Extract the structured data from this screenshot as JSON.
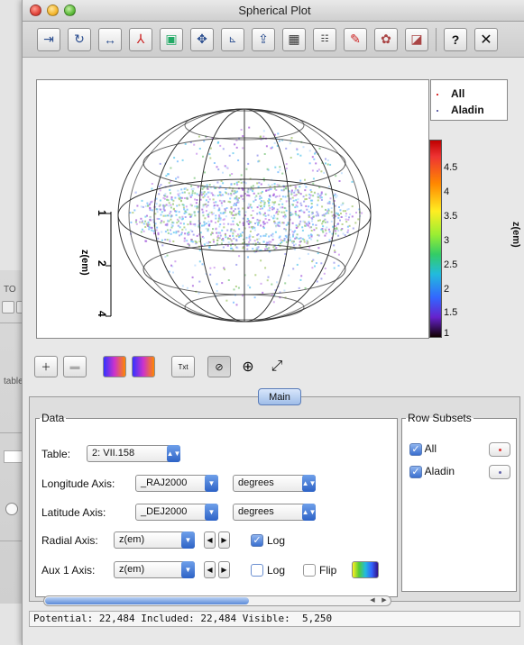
{
  "window": {
    "title": "Spherical Plot"
  },
  "toolbar": {
    "icons": [
      "dock-window-icon",
      "replot-icon",
      "rescale-icon",
      "export-pdf-icon",
      "export-image-icon",
      "navigate-icon",
      "axis-editor-icon",
      "subset-from-visible-icon",
      "grid-icon",
      "legend-icon",
      "erase-icon",
      "draw-region-icon",
      "blob-subset-icon",
      "help-icon",
      "close-icon"
    ],
    "close_label": "✕",
    "help_label": "?"
  },
  "legend": {
    "items": [
      {
        "label": "All",
        "color": "#d33"
      },
      {
        "label": "Aladin",
        "color": "#66a"
      }
    ]
  },
  "colorbar": {
    "title": "z(em)",
    "ticks": [
      "4.5",
      "4",
      "3.5",
      "3",
      "2.5",
      "2",
      "1.5",
      "1"
    ]
  },
  "plot": {
    "axis_label": "z(em)",
    "axis_ticks": [
      "1",
      "2",
      "4"
    ]
  },
  "plot_tools": {
    "icons": [
      "add-layer-icon",
      "remove-layer-icon",
      "add-aux-axis-icon",
      "remove-aux-axis-icon",
      "text-label-icon",
      "sphere-grid-icon",
      "crosshair-icon",
      "vector-icon"
    ],
    "text_label": "Txt"
  },
  "tabs": {
    "main": "Main"
  },
  "data": {
    "legend": "Data",
    "table_label": "Table:",
    "table_value": "2: VII.158",
    "longitude_label": "Longitude Axis:",
    "longitude_value": "_RAJ2000",
    "longitude_unit": "degrees",
    "latitude_label": "Latitude Axis:",
    "latitude_value": "_DEJ2000",
    "latitude_unit": "degrees",
    "radial_label": "Radial Axis:",
    "radial_value": "z(em)",
    "radial_log_label": "Log",
    "radial_log_checked": true,
    "aux_label": "Aux 1 Axis:",
    "aux_value": "z(em)",
    "aux_log_label": "Log",
    "aux_log_checked": false,
    "aux_flip_label": "Flip",
    "aux_flip_checked": false
  },
  "row_subsets": {
    "legend": "Row Subsets",
    "items": [
      {
        "label": "All",
        "checked": true,
        "color": "#d33"
      },
      {
        "label": "Aladin",
        "checked": true,
        "color": "#66a"
      }
    ]
  },
  "status": {
    "text": "Potential: 22,484 Included: 22,484 Visible:  5,250"
  },
  "background_window": {
    "label_top": "TO",
    "label_table": "table"
  }
}
